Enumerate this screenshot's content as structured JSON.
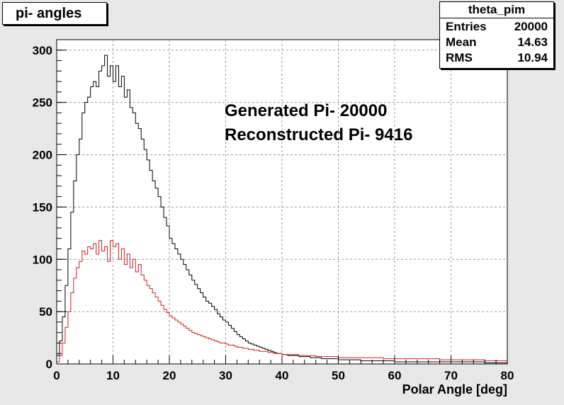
{
  "chart_data": {
    "type": "line",
    "title": "pi- angles",
    "xlabel": "Polar Angle [deg]",
    "ylabel": "",
    "xlim": [
      0,
      80
    ],
    "ylim": [
      0,
      310
    ],
    "xticks": [
      0,
      10,
      20,
      30,
      40,
      50,
      60,
      70,
      80
    ],
    "yticks": [
      0,
      50,
      100,
      150,
      200,
      250,
      300
    ],
    "grid": true,
    "bin_width": 0.5,
    "stats": {
      "name": "theta_pim",
      "rows": [
        {
          "label": "Entries",
          "value": "20000"
        },
        {
          "label": "Mean",
          "value": "14.63"
        },
        {
          "label": "RMS",
          "value": "10.94"
        }
      ]
    },
    "annotations": [
      "Generated Pi- 20000",
      "Reconstructed Pi- 9416"
    ],
    "series": [
      {
        "color": "#000000",
        "x": [
          0,
          0.5,
          1,
          1.5,
          2,
          2.5,
          3,
          3.5,
          4,
          4.5,
          5,
          5.5,
          6,
          6.5,
          7,
          7.5,
          8,
          8.5,
          9,
          9.5,
          10,
          10.5,
          11,
          11.5,
          12,
          12.5,
          13,
          13.5,
          14,
          14.5,
          15,
          15.5,
          16,
          16.5,
          17,
          17.5,
          18,
          18.5,
          19,
          19.5,
          20,
          20.5,
          21,
          21.5,
          22,
          22.5,
          23,
          23.5,
          24,
          24.5,
          25,
          25.5,
          26,
          26.5,
          27,
          27.5,
          28,
          28.5,
          29,
          29.5,
          30,
          30.5,
          31,
          31.5,
          32,
          32.5,
          33,
          33.5,
          34,
          34.5,
          35,
          35.5,
          36,
          36.5,
          37,
          37.5,
          38,
          38.5,
          39,
          39.5,
          40,
          41,
          42,
          43,
          44,
          45,
          46,
          47,
          48,
          49,
          50,
          52,
          54,
          56,
          58,
          60,
          62,
          64,
          66,
          68,
          70,
          72,
          74,
          76,
          78,
          79.5
        ],
        "y": [
          8,
          22,
          45,
          75,
          110,
          145,
          175,
          200,
          215,
          240,
          250,
          255,
          265,
          270,
          265,
          280,
          285,
          295,
          275,
          285,
          270,
          285,
          265,
          275,
          255,
          262,
          245,
          240,
          230,
          225,
          215,
          205,
          195,
          185,
          175,
          168,
          160,
          150,
          140,
          132,
          120,
          115,
          110,
          105,
          100,
          95,
          90,
          85,
          80,
          76,
          72,
          68,
          64,
          60,
          58,
          55,
          52,
          48,
          45,
          42,
          40,
          37,
          34,
          31,
          28,
          26,
          24,
          22,
          20,
          19,
          18,
          17,
          16,
          15,
          14,
          13,
          12,
          11,
          10,
          10,
          9,
          8,
          8,
          7,
          7,
          6,
          6,
          5,
          5,
          5,
          4,
          4,
          3,
          3,
          3,
          2,
          2,
          2,
          2,
          2,
          2,
          2,
          2,
          1,
          1,
          1
        ]
      },
      {
        "color": "#cc2020",
        "x": [
          0,
          0.5,
          1,
          1.5,
          2,
          2.5,
          3,
          3.5,
          4,
          4.5,
          5,
          5.5,
          6,
          6.5,
          7,
          7.5,
          8,
          8.5,
          9,
          9.5,
          10,
          10.5,
          11,
          11.5,
          12,
          12.5,
          13,
          13.5,
          14,
          14.5,
          15,
          15.5,
          16,
          16.5,
          17,
          17.5,
          18,
          18.5,
          19,
          19.5,
          20,
          20.5,
          21,
          21.5,
          22,
          22.5,
          23,
          23.5,
          24,
          24.5,
          25,
          25.5,
          26,
          26.5,
          27,
          27.5,
          28,
          28.5,
          29,
          29.5,
          30,
          30.5,
          31,
          31.5,
          32,
          32.5,
          33,
          33.5,
          34,
          34.5,
          35,
          35.5,
          36,
          36.5,
          37,
          37.5,
          38,
          38.5,
          39,
          39.5,
          40,
          41,
          42,
          43,
          44,
          45,
          46,
          47,
          48,
          49,
          50,
          52,
          54,
          56,
          58,
          60,
          62,
          64,
          66,
          68,
          70,
          72,
          74,
          76,
          78,
          79.5
        ],
        "y": [
          2,
          8,
          20,
          35,
          50,
          68,
          82,
          92,
          98,
          108,
          105,
          112,
          110,
          115,
          105,
          118,
          108,
          112,
          98,
          118,
          112,
          115,
          100,
          110,
          95,
          105,
          92,
          100,
          88,
          95,
          85,
          80,
          75,
          72,
          68,
          64,
          60,
          56,
          52,
          49,
          46,
          44,
          42,
          40,
          38,
          36,
          34,
          32,
          30,
          29,
          28,
          27,
          26,
          25,
          24,
          23,
          22,
          21,
          20,
          20,
          19,
          18,
          18,
          17,
          16,
          16,
          15,
          15,
          14,
          14,
          13,
          13,
          12,
          12,
          12,
          11,
          11,
          10,
          10,
          10,
          9,
          9,
          9,
          8,
          8,
          8,
          7,
          7,
          7,
          7,
          6,
          6,
          6,
          6,
          5,
          5,
          5,
          5,
          5,
          4,
          4,
          4,
          4,
          3,
          3,
          3
        ]
      }
    ]
  }
}
